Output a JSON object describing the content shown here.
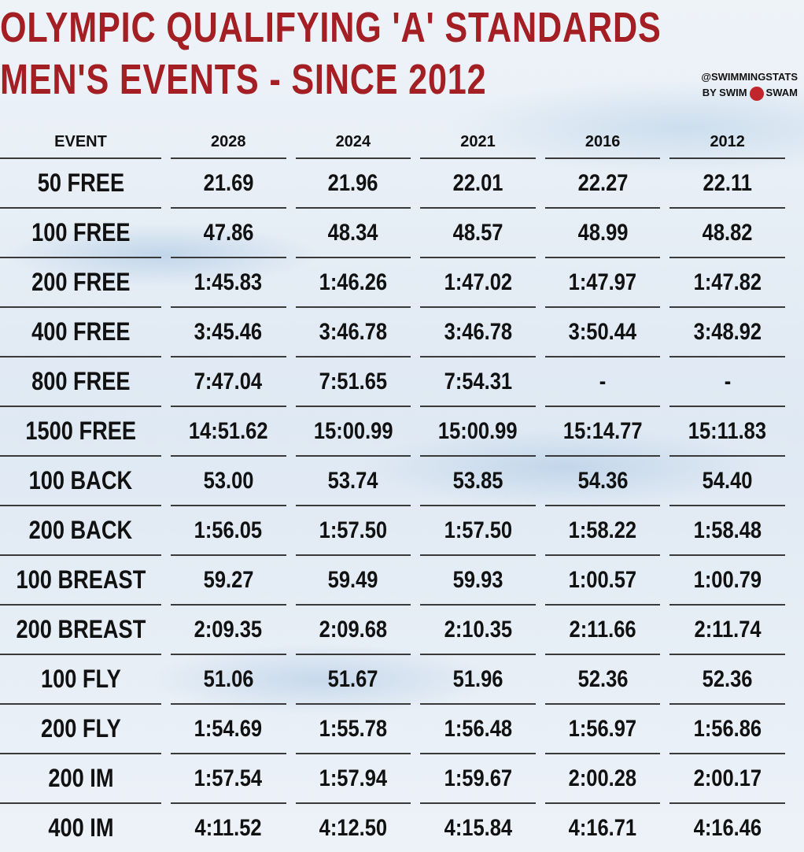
{
  "header": {
    "title": [
      "OLYMPIC QUALIFYING 'A' STANDARDS",
      "MEN'S EVENTS - SINCE 2012"
    ],
    "credit": [
      "@SWIMMINGSTATS",
      "BY SWIM",
      "SWAM"
    ]
  },
  "table": {
    "columns": [
      "EVENT",
      "2028",
      "2024",
      "2021",
      "2016",
      "2012"
    ],
    "rows": [
      [
        "50 FREE",
        "21.69",
        "21.96",
        "22.01",
        "22.27",
        "22.11"
      ],
      [
        "100 FREE",
        "47.86",
        "48.34",
        "48.57",
        "48.99",
        "48.82"
      ],
      [
        "200 FREE",
        "1:45.83",
        "1:46.26",
        "1:47.02",
        "1:47.97",
        "1:47.82"
      ],
      [
        "400 FREE",
        "3:45.46",
        "3:46.78",
        "3:46.78",
        "3:50.44",
        "3:48.92"
      ],
      [
        "800 FREE",
        "7:47.04",
        "7:51.65",
        "7:54.31",
        "-",
        "-"
      ],
      [
        "1500 FREE",
        "14:51.62",
        "15:00.99",
        "15:00.99",
        "15:14.77",
        "15:11.83"
      ],
      [
        "100 BACK",
        "53.00",
        "53.74",
        "53.85",
        "54.36",
        "54.40"
      ],
      [
        "200 BACK",
        "1:56.05",
        "1:57.50",
        "1:57.50",
        "1:58.22",
        "1:58.48"
      ],
      [
        "100 BREAST",
        "59.27",
        "59.49",
        "59.93",
        "1:00.57",
        "1:00.79"
      ],
      [
        "200 BREAST",
        "2:09.35",
        "2:09.68",
        "2:10.35",
        "2:11.66",
        "2:11.74"
      ],
      [
        "100 FLY",
        "51.06",
        "51.67",
        "51.96",
        "52.36",
        "52.36"
      ],
      [
        "200 FLY",
        "1:54.69",
        "1:55.78",
        "1:56.48",
        "1:56.97",
        "1:56.86"
      ],
      [
        "200 IM",
        "1:57.54",
        "1:57.94",
        "1:59.67",
        "2:00.28",
        "2:00.17"
      ],
      [
        "400 IM",
        "4:11.52",
        "4:12.50",
        "4:15.84",
        "4:16.71",
        "4:16.46"
      ]
    ]
  }
}
